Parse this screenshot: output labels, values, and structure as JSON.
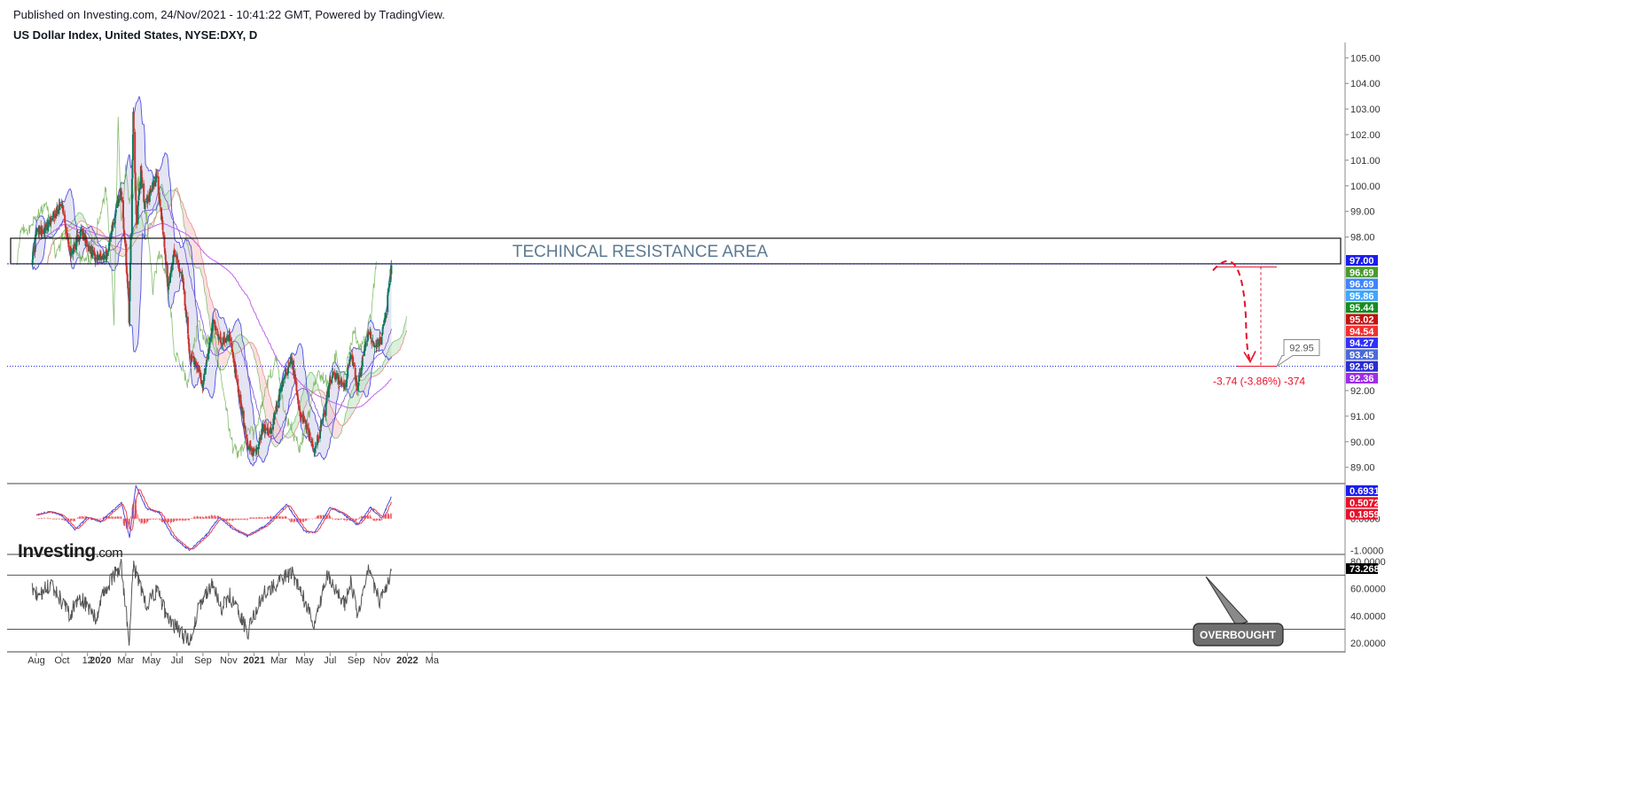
{
  "header": {
    "published": "Published on Investing.com, 24/Nov/2021 - 10:41:22 GMT, Powered by TradingView.",
    "instrument": "US Dollar Index, United States, NYSE:DXY, D"
  },
  "logo": {
    "brand": "Investing",
    "suffix": ".com"
  },
  "colors": {
    "candle_up": "#0b7a5a",
    "candle_down": "#c9342f",
    "bollinger": "#4f4fe0",
    "bollinger_fill": "#d8d8ee",
    "kumo_bull": "#b9e2b9",
    "kumo_bear": "#f6c2c2",
    "lagging": "#7bb661",
    "ma200": "#c064e6",
    "resistance_text": "#5b7a91",
    "projection": "#e8102a",
    "rsi_line": "#555555",
    "macd_line": "#4b4bdc",
    "signal_line": "#e8414a"
  },
  "annotations": {
    "resistance_area": "TECHINCAL  RESISTANCE AREA",
    "target_callout": "92.95",
    "measure": "-3.74 (-3.86%) -374",
    "overbought": "OVERBOUGHT"
  },
  "chart_data": [
    {
      "type": "candlestick",
      "title": "US Dollar Index, United States, NYSE:DXY, D",
      "x_tick_labels": [
        "Aug",
        "Oct",
        "12",
        "2020",
        "Mar",
        "May",
        "Jul",
        "Sep",
        "Nov",
        "2021",
        "Mar",
        "May",
        "Jul",
        "Sep",
        "Nov",
        "2022",
        "Ma"
      ],
      "y_tick_labels": [
        "89.00",
        "90.00",
        "91.00",
        "92.00",
        "98.00",
        "99.00",
        "100.00",
        "101.00",
        "102.00",
        "103.00",
        "104.00",
        "105.00"
      ],
      "ylim": [
        88.4,
        105.6
      ],
      "price_anchors": [
        [
          "2019-07-22",
          97.1
        ],
        [
          "2019-08-01",
          98.2
        ],
        [
          "2019-08-20",
          98.3
        ],
        [
          "2019-09-05",
          98.6
        ],
        [
          "2019-10-01",
          99.4
        ],
        [
          "2019-10-20",
          97.3
        ],
        [
          "2019-11-15",
          98.2
        ],
        [
          "2019-12-20",
          97.2
        ],
        [
          "2020-01-15",
          97.3
        ],
        [
          "2020-02-19",
          99.9
        ],
        [
          "2020-03-06",
          96.0
        ],
        [
          "2020-03-09",
          94.7
        ],
        [
          "2020-03-19",
          102.8
        ],
        [
          "2020-03-27",
          98.4
        ],
        [
          "2020-04-06",
          100.7
        ],
        [
          "2020-04-15",
          99.2
        ],
        [
          "2020-05-14",
          100.4
        ],
        [
          "2020-05-28",
          98.4
        ],
        [
          "2020-06-10",
          96.0
        ],
        [
          "2020-06-25",
          97.4
        ],
        [
          "2020-07-15",
          96.4
        ],
        [
          "2020-07-31",
          93.4
        ],
        [
          "2020-08-20",
          92.9
        ],
        [
          "2020-09-01",
          92.2
        ],
        [
          "2020-09-25",
          94.6
        ],
        [
          "2020-10-15",
          93.8
        ],
        [
          "2020-11-04",
          94.2
        ],
        [
          "2020-11-20",
          92.4
        ],
        [
          "2020-12-17",
          89.8
        ],
        [
          "2021-01-06",
          89.5
        ],
        [
          "2021-01-20",
          90.5
        ],
        [
          "2021-02-10",
          90.4
        ],
        [
          "2021-03-08",
          92.2
        ],
        [
          "2021-03-31",
          93.3
        ],
        [
          "2021-04-20",
          91.2
        ],
        [
          "2021-05-25",
          89.7
        ],
        [
          "2021-06-16",
          91.0
        ],
        [
          "2021-06-25",
          91.9
        ],
        [
          "2021-07-07",
          92.7
        ],
        [
          "2021-08-05",
          92.1
        ],
        [
          "2021-08-20",
          93.5
        ],
        [
          "2021-09-03",
          92.1
        ],
        [
          "2021-09-30",
          94.3
        ],
        [
          "2021-10-15",
          93.8
        ],
        [
          "2021-10-28",
          93.9
        ],
        [
          "2021-11-10",
          94.9
        ],
        [
          "2021-11-24",
          96.9
        ]
      ],
      "resistance_zone": [
        96.95,
        97.95
      ],
      "support_line": 92.95,
      "projection_from": 96.9,
      "projection_to": 92.95,
      "price_badges": [
        {
          "value": "97.00",
          "color": "#1c1cf2"
        },
        {
          "value": "96.69",
          "color": "#4a9b2e"
        },
        {
          "value": "96.69",
          "color": "#3d85ff"
        },
        {
          "value": "95.86",
          "color": "#40a6ff"
        },
        {
          "value": "95.44",
          "color": "#158b20"
        },
        {
          "value": "95.02",
          "color": "#c41111"
        },
        {
          "value": "94.54",
          "color": "#f52e2e"
        },
        {
          "value": "94.27",
          "color": "#3030ff"
        },
        {
          "value": "93.45",
          "color": "#4b6ad7"
        },
        {
          "value": "92.96",
          "color": "#2b2bd6"
        },
        {
          "value": "92.36",
          "color": "#9e2ee8"
        }
      ]
    },
    {
      "type": "line",
      "title": "MACD",
      "y_tick_labels": [
        "0.0000",
        "-1.0000"
      ],
      "ylim": [
        -1.1,
        1.05
      ],
      "macd_anchors": [
        [
          "2019-08-01",
          0.12
        ],
        [
          "2019-09-01",
          0.22
        ],
        [
          "2019-10-01",
          0.1
        ],
        [
          "2019-11-01",
          -0.35
        ],
        [
          "2019-12-01",
          0.05
        ],
        [
          "2020-01-01",
          -0.1
        ],
        [
          "2020-02-20",
          0.5
        ],
        [
          "2020-03-10",
          -0.6
        ],
        [
          "2020-03-25",
          1.05
        ],
        [
          "2020-04-20",
          0.3
        ],
        [
          "2020-05-20",
          0.2
        ],
        [
          "2020-06-20",
          -0.55
        ],
        [
          "2020-07-31",
          -1.0
        ],
        [
          "2020-09-10",
          -0.5
        ],
        [
          "2020-10-10",
          0.05
        ],
        [
          "2020-11-10",
          -0.3
        ],
        [
          "2020-12-15",
          -0.55
        ],
        [
          "2021-01-30",
          -0.2
        ],
        [
          "2021-03-20",
          0.45
        ],
        [
          "2021-05-01",
          -0.4
        ],
        [
          "2021-05-25",
          -0.45
        ],
        [
          "2021-06-30",
          0.35
        ],
        [
          "2021-08-01",
          0.15
        ],
        [
          "2021-09-05",
          -0.2
        ],
        [
          "2021-10-05",
          0.35
        ],
        [
          "2021-11-01",
          0.0
        ],
        [
          "2021-11-24",
          0.69
        ]
      ],
      "price_badges": [
        {
          "value": "0.6931",
          "color": "#1c1cf2"
        },
        {
          "value": "0.5072",
          "color": "#e8102a"
        },
        {
          "value": "0.1859",
          "color": "#e8102a"
        }
      ]
    },
    {
      "type": "line",
      "title": "RSI",
      "y_tick_labels": [
        "80.0000",
        "60.0000",
        "40.0000",
        "20.0000"
      ],
      "ylim": [
        14,
        84
      ],
      "bands": [
        70,
        30
      ],
      "rsi_anchors": [
        [
          "2019-07-22",
          60
        ],
        [
          "2019-08-05",
          55
        ],
        [
          "2019-09-05",
          64
        ],
        [
          "2019-10-20",
          40
        ],
        [
          "2019-11-10",
          55
        ],
        [
          "2019-12-20",
          38
        ],
        [
          "2020-01-10",
          58
        ],
        [
          "2020-02-19",
          78
        ],
        [
          "2020-03-09",
          22
        ],
        [
          "2020-03-19",
          77
        ],
        [
          "2020-04-20",
          48
        ],
        [
          "2020-05-14",
          58
        ],
        [
          "2020-06-10",
          38
        ],
        [
          "2020-07-31",
          20
        ],
        [
          "2020-08-20",
          45
        ],
        [
          "2020-09-25",
          65
        ],
        [
          "2020-10-15",
          45
        ],
        [
          "2020-11-04",
          55
        ],
        [
          "2020-12-17",
          28
        ],
        [
          "2021-01-20",
          55
        ],
        [
          "2021-03-31",
          72
        ],
        [
          "2021-05-25",
          35
        ],
        [
          "2021-06-25",
          70
        ],
        [
          "2021-08-05",
          48
        ],
        [
          "2021-08-20",
          65
        ],
        [
          "2021-09-03",
          40
        ],
        [
          "2021-09-30",
          72
        ],
        [
          "2021-10-28",
          50
        ],
        [
          "2021-11-24",
          73.27
        ]
      ],
      "price_badges": [
        {
          "value": "73.2680",
          "color": "#000000"
        }
      ]
    }
  ]
}
